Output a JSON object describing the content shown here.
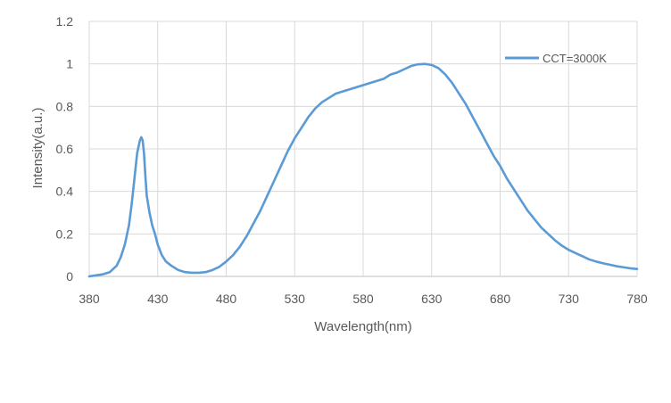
{
  "chart_data": {
    "type": "line",
    "title": "",
    "xlabel": "Wavelength(nm)",
    "ylabel": "Intensity(a.u.)",
    "xlim": [
      380,
      780
    ],
    "ylim": [
      0,
      1.2
    ],
    "x_ticks": [
      380,
      430,
      480,
      530,
      580,
      630,
      680,
      730,
      780
    ],
    "y_ticks": [
      "0",
      "0.2",
      "0.4",
      "0.6",
      "0.8",
      "1",
      "1.2"
    ],
    "grid": true,
    "legend_position": "top-right",
    "series": [
      {
        "name": "CCT=3000K",
        "color": "#5B9BD5",
        "x": [
          380,
          385,
          390,
          395,
          400,
          403,
          406,
          409,
          411,
          413,
          415,
          417,
          418,
          419,
          420,
          421,
          422,
          424,
          426,
          428,
          430,
          433,
          436,
          440,
          445,
          450,
          455,
          460,
          465,
          470,
          475,
          480,
          485,
          490,
          495,
          500,
          505,
          510,
          515,
          520,
          525,
          530,
          535,
          540,
          545,
          550,
          555,
          560,
          565,
          570,
          575,
          580,
          585,
          590,
          595,
          600,
          605,
          610,
          615,
          620,
          625,
          630,
          635,
          640,
          645,
          650,
          655,
          660,
          665,
          670,
          675,
          680,
          685,
          690,
          695,
          700,
          705,
          710,
          715,
          720,
          725,
          730,
          735,
          740,
          745,
          750,
          755,
          760,
          765,
          770,
          775,
          780
        ],
        "values": [
          0.0,
          0.005,
          0.01,
          0.02,
          0.05,
          0.09,
          0.15,
          0.24,
          0.34,
          0.46,
          0.58,
          0.64,
          0.655,
          0.64,
          0.58,
          0.47,
          0.38,
          0.3,
          0.24,
          0.2,
          0.15,
          0.1,
          0.07,
          0.05,
          0.03,
          0.02,
          0.017,
          0.017,
          0.02,
          0.03,
          0.045,
          0.07,
          0.1,
          0.14,
          0.19,
          0.25,
          0.31,
          0.38,
          0.45,
          0.52,
          0.59,
          0.65,
          0.7,
          0.75,
          0.79,
          0.82,
          0.84,
          0.86,
          0.87,
          0.88,
          0.89,
          0.9,
          0.91,
          0.92,
          0.93,
          0.95,
          0.96,
          0.975,
          0.99,
          0.998,
          1.0,
          0.995,
          0.98,
          0.95,
          0.91,
          0.86,
          0.81,
          0.75,
          0.69,
          0.63,
          0.57,
          0.52,
          0.46,
          0.41,
          0.36,
          0.31,
          0.27,
          0.23,
          0.2,
          0.17,
          0.145,
          0.125,
          0.11,
          0.095,
          0.08,
          0.07,
          0.062,
          0.055,
          0.048,
          0.043,
          0.038,
          0.035
        ]
      }
    ]
  }
}
